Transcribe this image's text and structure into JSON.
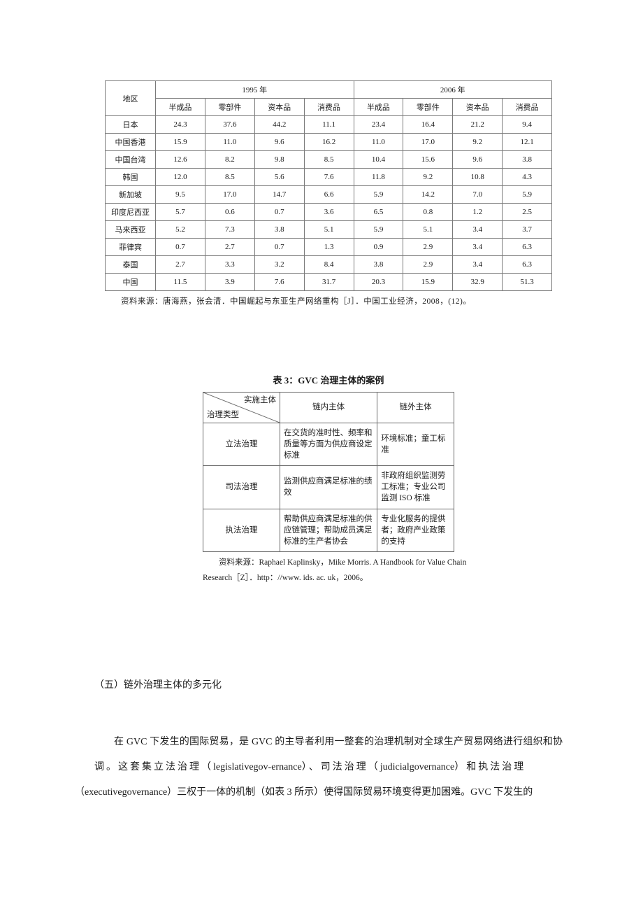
{
  "table1": {
    "header_region": "地区",
    "header_year1": "1995 年",
    "header_year2": "2006 年",
    "cols": [
      "半成品",
      "零部件",
      "资本品",
      "消费品",
      "半成品",
      "零部件",
      "资本品",
      "消费品"
    ],
    "rows": [
      {
        "region": "日本",
        "v": [
          "24.3",
          "37.6",
          "44.2",
          "11.1",
          "23.4",
          "16.4",
          "21.2",
          "9.4"
        ]
      },
      {
        "region": "中国香港",
        "v": [
          "15.9",
          "11.0",
          "9.6",
          "16.2",
          "11.0",
          "17.0",
          "9.2",
          "12.1"
        ]
      },
      {
        "region": "中国台湾",
        "v": [
          "12.6",
          "8.2",
          "9.8",
          "8.5",
          "10.4",
          "15.6",
          "9.6",
          "3.8"
        ]
      },
      {
        "region": "韩国",
        "v": [
          "12.0",
          "8.5",
          "5.6",
          "7.6",
          "11.8",
          "9.2",
          "10.8",
          "4.3"
        ]
      },
      {
        "region": "新加坡",
        "v": [
          "9.5",
          "17.0",
          "14.7",
          "6.6",
          "5.9",
          "14.2",
          "7.0",
          "5.9"
        ]
      },
      {
        "region": "印度尼西亚",
        "v": [
          "5.7",
          "0.6",
          "0.7",
          "3.6",
          "6.5",
          "0.8",
          "1.2",
          "2.5"
        ]
      },
      {
        "region": "马来西亚",
        "v": [
          "5.2",
          "7.3",
          "3.8",
          "5.1",
          "5.9",
          "5.1",
          "3.4",
          "3.7"
        ]
      },
      {
        "region": "菲律宾",
        "v": [
          "0.7",
          "2.7",
          "0.7",
          "1.3",
          "0.9",
          "2.9",
          "3.4",
          "6.3"
        ]
      },
      {
        "region": "泰国",
        "v": [
          "2.7",
          "3.3",
          "3.2",
          "8.4",
          "3.8",
          "2.9",
          "3.4",
          "6.3"
        ]
      },
      {
        "region": "中国",
        "v": [
          "11.5",
          "3.9",
          "7.6",
          "31.7",
          "20.3",
          "15.9",
          "32.9",
          "51.3"
        ]
      }
    ],
    "source": "资料来源：唐海燕，张会清．中国崛起与东亚生产网络重构［J］．中国工业经济，2008，(12)。",
    "font_size": 11,
    "border_color": "#7a7a7a"
  },
  "table2": {
    "title": "表 3：GVC 治理主体的案例",
    "diag_top": "实施主体",
    "diag_bot": "治理类型",
    "col_in": "链内主体",
    "col_out": "链外主体",
    "rows": [
      {
        "gov": "立法治理",
        "in": "在交货的准时性、频率和质量等方面为供应商设定标准",
        "out": "环境标准；童工标准"
      },
      {
        "gov": "司法治理",
        "in": "监测供应商满足标准的绩效",
        "out": "非政府组织监测劳工标准；专业公司监测 ISO 标准"
      },
      {
        "gov": "执法治理",
        "in": "帮助供应商满足标准的供应链管理；帮助成员满足标准的生产者协会",
        "out": "专业化服务的提供者；政府产业政策的支持"
      }
    ],
    "source": "资料来源：Raphael Kaplinsky，Mike Morris. A Handbook for Value Chain Research［Z］．http：//www. ids. ac. uk，2006。",
    "font_size": 11.5,
    "border_color": "#6a6a6a"
  },
  "heading": "（五）链外治理主体的多元化",
  "paragraph_pre": "在 GVC 下发生的国际贸易，是 GVC 的主导者利用一整套的治理机制对全球生产贸易网络进行组织和协",
  "paragraph_spaced": "调。这套集立法治理（",
  "paragraph_mid1": "legislativegov-ernance",
  "paragraph_spaced2": "）、司法治理（",
  "paragraph_mid2": "judicialgovernance",
  "paragraph_spaced3": "）和执法治理",
  "paragraph_tail": "（executivegovernance）三权于一体的机制（如表 3 所示）使得国际贸易环境变得更加困难。GVC 下发生的",
  "colors": {
    "background": "#ffffff",
    "text": "#1a1a1a"
  }
}
